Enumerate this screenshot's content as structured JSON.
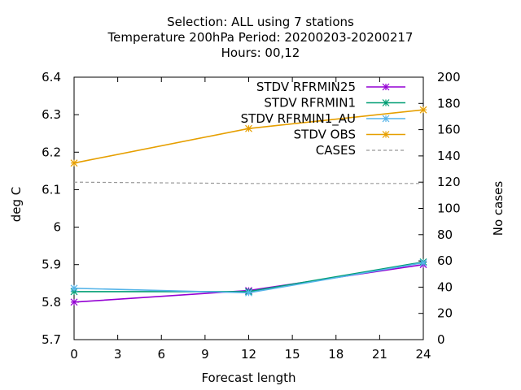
{
  "chart_data": {
    "type": "line",
    "title_lines": [
      "Selection: ALL using     7 stations",
      "Temperature 200hPa   Period: 20200203-20200217",
      "Hours:  00,12"
    ],
    "xlabel": "Forecast length",
    "ylabel": "deg C",
    "y2label": "No cases",
    "xlim": [
      0,
      24
    ],
    "ylim": [
      5.7,
      6.4
    ],
    "y2lim": [
      0,
      200
    ],
    "xticks": [
      "0",
      "3",
      "6",
      "9",
      "12",
      "15",
      "18",
      "21",
      "24"
    ],
    "yticks": [
      "5.7",
      "5.8",
      "5.9",
      "6",
      "6.1",
      "6.2",
      "6.3",
      "6.4"
    ],
    "y2ticks": [
      "0",
      "20",
      "40",
      "60",
      "80",
      "100",
      "120",
      "140",
      "160",
      "180",
      "200"
    ],
    "grid": false,
    "legend_position": "top-right",
    "series": [
      {
        "name": "STDV RFRMIN25",
        "axis": "y",
        "color": "#9400d3",
        "marker": "star",
        "x": [
          0,
          12,
          24
        ],
        "y": [
          5.8,
          5.831,
          5.9
        ]
      },
      {
        "name": "STDV RFRMIN1",
        "axis": "y",
        "color": "#009e73",
        "marker": "star",
        "x": [
          0,
          12,
          24
        ],
        "y": [
          5.828,
          5.828,
          5.907
        ]
      },
      {
        "name": "STDV RFRMIN1_AU",
        "axis": "y",
        "color": "#56b4e9",
        "marker": "star",
        "x": [
          0,
          12,
          24
        ],
        "y": [
          5.837,
          5.825,
          5.905
        ]
      },
      {
        "name": "STDV OBS",
        "axis": "y",
        "color": "#e69f00",
        "marker": "star",
        "x": [
          0,
          12,
          24
        ],
        "y": [
          6.171,
          6.263,
          6.313
        ]
      },
      {
        "name": "CASES",
        "axis": "y2",
        "color": "#999999",
        "dashed": true,
        "x": [
          0,
          12,
          24
        ],
        "y": [
          120,
          119,
          119
        ]
      }
    ]
  }
}
